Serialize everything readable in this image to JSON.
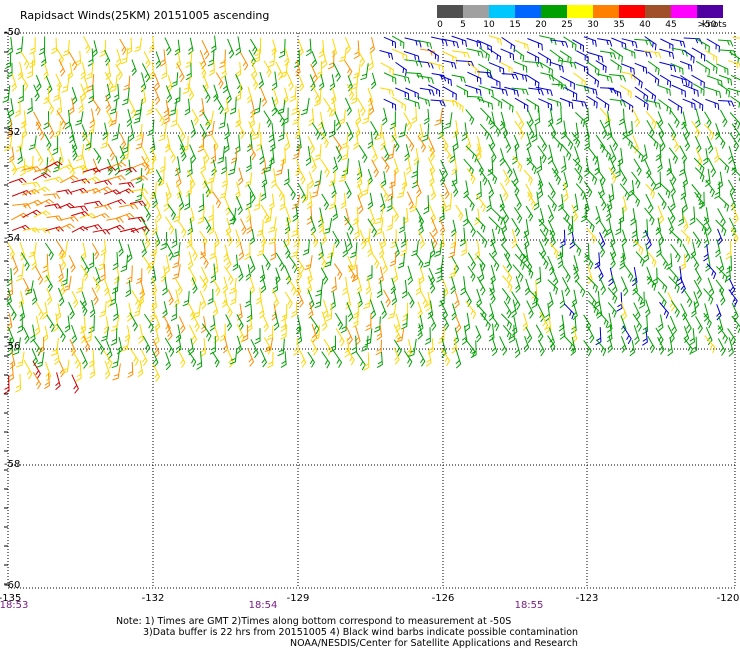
{
  "title": "Rapidsact Winds(25KM) 20151005 ascending",
  "legend": {
    "units": "knots",
    "ticks": [
      "0",
      "5",
      "10",
      "15",
      "20",
      "25",
      "30",
      "35",
      "40",
      "45",
      ">50"
    ],
    "colors": [
      "#505050",
      "#a0a0a0",
      "#00c8ff",
      "#0064ff",
      "#00a000",
      "#ffff00",
      "#ff8000",
      "#ff0000",
      "#a05028",
      "#ff00ff",
      "#5000a0"
    ]
  },
  "lat_labels": [
    "-50",
    "-52",
    "-54",
    "-56",
    "-58",
    "-60"
  ],
  "lon_labels": [
    "-135",
    "-132",
    "-129",
    "-126",
    "-123",
    "-120"
  ],
  "times": [
    "18:53",
    "18:54",
    "18:55"
  ],
  "notes": {
    "line1": "Note: 1) Times are GMT 2)Times along bottom correspond to measurement at -50S",
    "line2": "3)Data buffer is 22 hrs from 20151005 4) Black wind barbs indicate possible contamination",
    "line3": "NOAA/NESDIS/Center for Satellite Applications and Research"
  },
  "wind_colors": {
    "blue": "#0000cc",
    "green": "#00a000",
    "yellow": "#ffd700",
    "orange": "#ff8c00",
    "red": "#cc0000"
  }
}
